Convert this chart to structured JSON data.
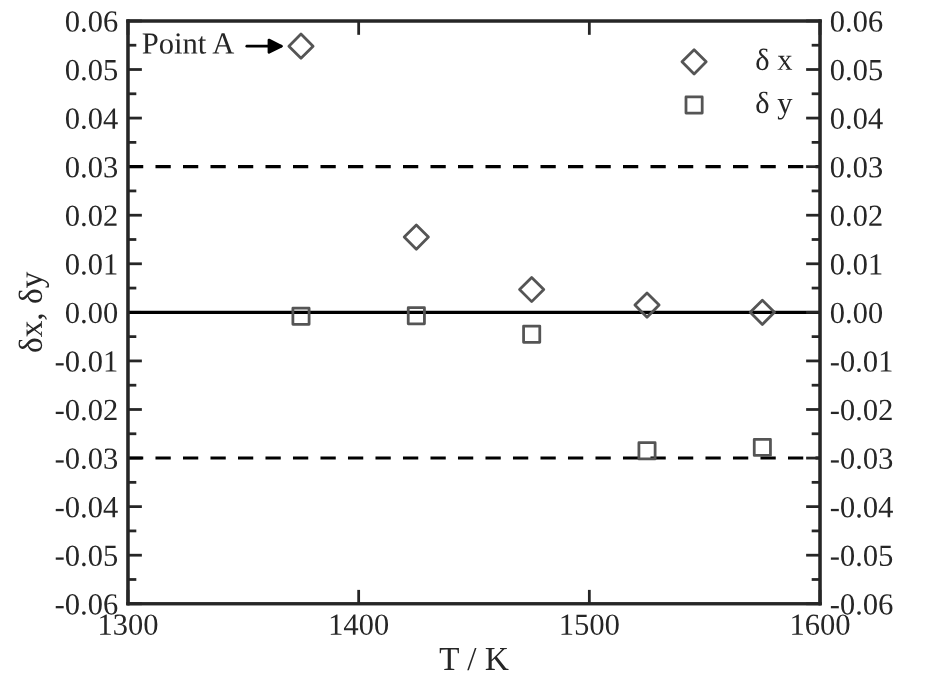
{
  "chart_data": {
    "type": "scatter",
    "xlabel": "T / K",
    "ylabel": "δx, δy",
    "x": [
      1375,
      1425,
      1475,
      1525,
      1575
    ],
    "series": [
      {
        "name": "δ x",
        "color": "#555555",
        "marker": "diamond",
        "values": [
          0.0548,
          0.0155,
          0.0047,
          0.0015,
          0.0
        ]
      },
      {
        "name": "δ y",
        "color": "#555555",
        "marker": "square",
        "values": [
          -0.0008,
          -0.0007,
          -0.0045,
          -0.0285,
          -0.0278
        ]
      }
    ],
    "xlim": [
      1300,
      1600
    ],
    "xticks": [
      1300,
      1400,
      1500,
      1600
    ],
    "ylim": [
      -0.06,
      0.06
    ],
    "yticks": [
      {
        "value": -0.06,
        "label": "-0.06"
      },
      {
        "value": -0.05,
        "label": "-0.05"
      },
      {
        "value": -0.04,
        "label": "-0.04"
      },
      {
        "value": -0.03,
        "label": "-0.03"
      },
      {
        "value": -0.02,
        "label": "-0.02"
      },
      {
        "value": -0.01,
        "label": "-0.01"
      },
      {
        "value": 0,
        "label": "0.00"
      },
      {
        "value": 0.01,
        "label": "0.01"
      },
      {
        "value": 0.02,
        "label": "0.02"
      },
      {
        "value": 0.03,
        "label": "0.03"
      },
      {
        "value": 0.04,
        "label": "0.04"
      },
      {
        "value": 0.05,
        "label": "0.05"
      },
      {
        "value": 0.06,
        "label": "0.06"
      }
    ],
    "y2lim": [
      -0.06,
      0.06
    ],
    "y2ticks": [
      {
        "value": -0.06,
        "label": "-0.06"
      },
      {
        "value": -0.05,
        "label": "-0.05"
      },
      {
        "value": -0.04,
        "label": "-0.04"
      },
      {
        "value": -0.03,
        "label": "-0.03"
      },
      {
        "value": -0.02,
        "label": "-0.02"
      },
      {
        "value": -0.01,
        "label": "-0.01"
      },
      {
        "value": 0,
        "label": "0.00"
      },
      {
        "value": 0.01,
        "label": "0.01"
      },
      {
        "value": 0.02,
        "label": "0.02"
      },
      {
        "value": 0.03,
        "label": "0.03"
      },
      {
        "value": 0.04,
        "label": "0.04"
      },
      {
        "value": 0.05,
        "label": "0.05"
      },
      {
        "value": 0.06,
        "label": "0.06"
      }
    ],
    "ref_lines": [
      {
        "axis": "y",
        "value": 0.03,
        "color": "#000000",
        "line_style": "dashed"
      },
      {
        "axis": "y",
        "value": 0,
        "color": "#000000",
        "line_style": "solid"
      },
      {
        "axis": "y",
        "value": -0.03,
        "color": "#000000",
        "line_style": "dashed"
      }
    ],
    "annotations": [
      {
        "text": "Point A",
        "x": 1375,
        "y": 0.0548
      }
    ],
    "legend": "top right",
    "grid": false
  }
}
